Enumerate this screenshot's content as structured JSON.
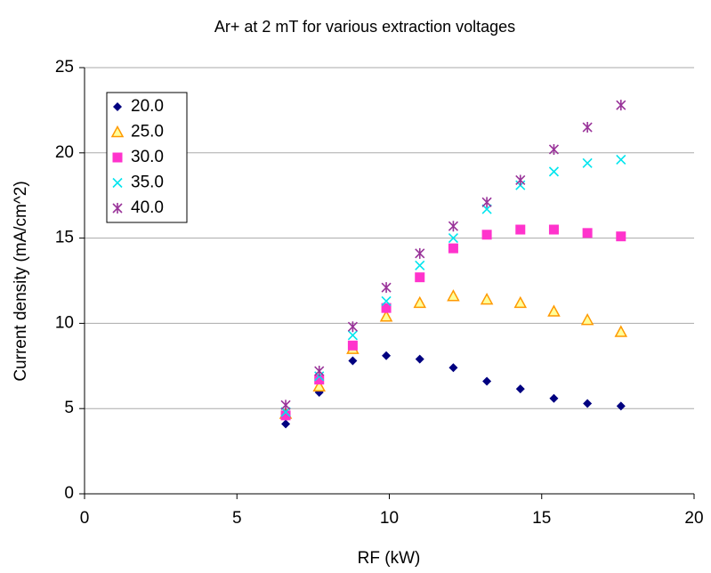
{
  "chart_data": {
    "type": "scatter",
    "title": "Ar+ at 2 mT for various extraction voltages",
    "x_label": "RF (kW)",
    "y_label": "Current density (mA/cm^2)",
    "x": [
      6.6,
      7.7,
      8.8,
      9.9,
      11,
      12.1,
      13.2,
      14.3,
      15.4,
      16.5,
      17.6
    ],
    "series": [
      {
        "name": "20.0",
        "color": "#000080",
        "marker": "diamond",
        "values": [
          4.1,
          5.95,
          7.8,
          8.1,
          7.9,
          7.4,
          6.6,
          6.15,
          5.6,
          5.3,
          5.15
        ]
      },
      {
        "name": "25.0",
        "color": "#ff9900",
        "marker": "triangle",
        "values": [
          4.7,
          6.3,
          8.5,
          10.4,
          11.2,
          11.6,
          11.4,
          11.2,
          10.7,
          10.2,
          9.5
        ]
      },
      {
        "name": "30.0",
        "color": "#ff33cc",
        "marker": "square",
        "values": [
          4.6,
          6.7,
          8.7,
          10.9,
          12.7,
          14.4,
          15.2,
          15.5,
          15.5,
          15.3,
          15.1
        ]
      },
      {
        "name": "35.0",
        "color": "#00e5ee",
        "marker": "x",
        "values": [
          4.8,
          6.9,
          9.3,
          11.3,
          13.4,
          15.0,
          16.7,
          18.1,
          18.9,
          19.4,
          19.6
        ]
      },
      {
        "name": "40.0",
        "color": "#993399",
        "marker": "star",
        "values": [
          5.2,
          7.2,
          9.8,
          12.1,
          14.1,
          15.7,
          17.1,
          18.4,
          20.2,
          21.5,
          22.8
        ]
      }
    ],
    "xlim": [
      0,
      20
    ],
    "xticks": [
      0,
      5,
      10,
      15,
      20
    ],
    "ylim": [
      0,
      25
    ],
    "yticks": [
      0,
      5,
      10,
      15,
      20,
      25
    ],
    "grid": true,
    "legend": "top-left"
  }
}
